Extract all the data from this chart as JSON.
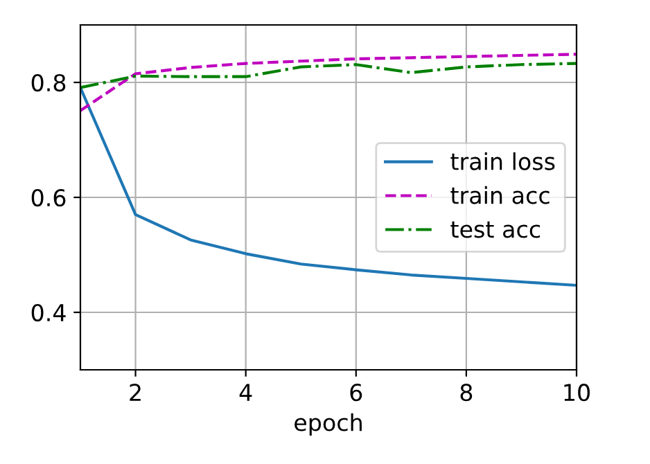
{
  "chart_data": {
    "type": "line",
    "xlabel": "epoch",
    "x": [
      1,
      2,
      3,
      4,
      5,
      6,
      7,
      8,
      9,
      10
    ],
    "series": [
      {
        "name": "train loss",
        "color": "#1f77b4",
        "line_style": "solid",
        "values": [
          0.791,
          0.57,
          0.526,
          0.502,
          0.484,
          0.474,
          0.465,
          0.459,
          0.453,
          0.447
        ]
      },
      {
        "name": "train acc",
        "color": "#bf00bf",
        "line_style": "dashed",
        "values": [
          0.751,
          0.815,
          0.826,
          0.833,
          0.837,
          0.841,
          0.843,
          0.845,
          0.847,
          0.849
        ]
      },
      {
        "name": "test acc",
        "color": "#008000",
        "line_style": "dashdot",
        "values": [
          0.791,
          0.811,
          0.81,
          0.81,
          0.827,
          0.831,
          0.817,
          0.827,
          0.831,
          0.833
        ]
      }
    ],
    "xlim": [
      1,
      10
    ],
    "ylim": [
      0.3,
      0.9
    ],
    "xticks": [
      2,
      4,
      6,
      8,
      10
    ],
    "yticks": [
      0.4,
      0.6,
      0.8
    ],
    "grid": true,
    "legend": "right"
  }
}
